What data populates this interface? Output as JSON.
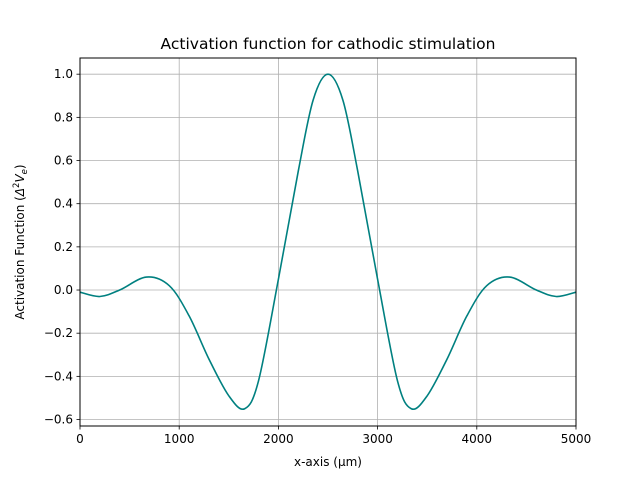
{
  "chart_data": {
    "type": "line",
    "title": "Activation function for cathodic stimulation",
    "xlabel": "x-axis (µm)",
    "ylabel_prefix": "Activation Function (",
    "ylabel_symbol": "Δ",
    "ylabel_sup": "2",
    "ylabel_var": "V",
    "ylabel_sub": "e",
    "ylabel_suffix": ")",
    "xlim": [
      0,
      5000
    ],
    "ylim": [
      -0.63,
      1.075
    ],
    "x_ticks": [
      0,
      1000,
      2000,
      3000,
      4000,
      5000
    ],
    "x_tick_labels": [
      "0",
      "1000",
      "2000",
      "3000",
      "4000",
      "5000"
    ],
    "y_ticks": [
      -0.6,
      -0.4,
      -0.2,
      0.0,
      0.2,
      0.4,
      0.6,
      0.8,
      1.0
    ],
    "y_tick_labels": [
      "−0.6",
      "−0.4",
      "−0.2",
      "0.0",
      "0.2",
      "0.4",
      "0.6",
      "0.8",
      "1.0"
    ],
    "grid": true,
    "line_color": "#008080",
    "series": [
      {
        "x": [
          0,
          200,
          400,
          670,
          900,
          1100,
          1300,
          1500,
          1660,
          1800,
          2000,
          2200,
          2350,
          2500,
          2650,
          2800,
          3000,
          3200,
          3340,
          3500,
          3700,
          3900,
          4100,
          4330,
          4600,
          4800,
          5000
        ],
        "y": [
          -0.01,
          -0.03,
          0.0,
          0.06,
          0.02,
          -0.12,
          -0.32,
          -0.49,
          -0.55,
          -0.42,
          0.05,
          0.55,
          0.88,
          1.0,
          0.88,
          0.55,
          0.05,
          -0.42,
          -0.55,
          -0.49,
          -0.32,
          -0.12,
          0.02,
          0.06,
          0.0,
          -0.03,
          -0.01
        ]
      }
    ]
  }
}
